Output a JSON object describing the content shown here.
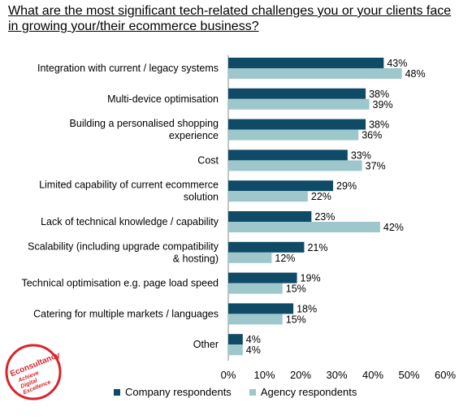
{
  "title": "What are the most significant tech-related challenges you or your clients face in growing your/their ecommerce business?",
  "logo": {
    "brand": "Econsultancy",
    "tagline": "Achieve Digital Excellence",
    "color": "#d9242b"
  },
  "colors": {
    "company": "#0f4a66",
    "agency": "#9ec7cc"
  },
  "chart_data": {
    "type": "bar",
    "orientation": "horizontal",
    "title": "What are the most significant tech-related challenges you or your clients face in growing your/their ecommerce business?",
    "categories": [
      [
        "Integration with current / legacy systems"
      ],
      [
        "Multi-device optimisation"
      ],
      [
        "Building a personalised shopping",
        "experience"
      ],
      [
        "Cost"
      ],
      [
        "Limited capability of current ecommerce",
        "solution"
      ],
      [
        "Lack of technical knowledge / capability"
      ],
      [
        "Scalability (including upgrade compatibility",
        "& hosting)"
      ],
      [
        "Technical optimisation e.g. page load speed"
      ],
      [
        "Catering for multiple markets / languages"
      ],
      [
        "Other"
      ]
    ],
    "series": [
      {
        "name": "Company respondents",
        "values": [
          43,
          38,
          38,
          33,
          29,
          23,
          21,
          19,
          18,
          4
        ]
      },
      {
        "name": "Agency respondents",
        "values": [
          48,
          39,
          36,
          37,
          22,
          42,
          12,
          15,
          15,
          4
        ]
      }
    ],
    "xlim": [
      0,
      60
    ],
    "xticks": [
      "0%",
      "10%",
      "20%",
      "30%",
      "40%",
      "50%",
      "60%"
    ],
    "value_suffix": "%",
    "legend": "bottom",
    "grid": false
  }
}
